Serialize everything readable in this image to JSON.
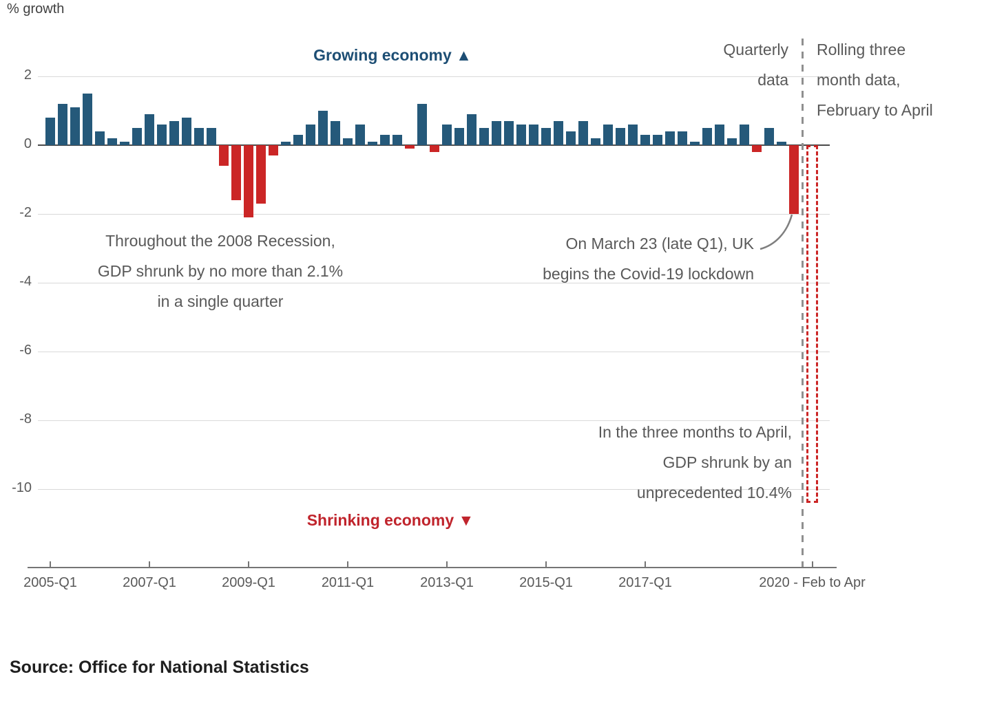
{
  "chart_data": {
    "type": "bar",
    "ylabel": "% growth",
    "ylim": [
      -10.4,
      2
    ],
    "grid": true,
    "legend_position": "none",
    "start_quarter": "2005-Q1",
    "frequency": "quarterly",
    "values": [
      0.8,
      1.2,
      1.1,
      1.5,
      0.4,
      0.2,
      0.1,
      0.5,
      0.9,
      0.6,
      0.7,
      0.8,
      0.5,
      0.5,
      -0.6,
      -1.6,
      -2.1,
      -1.7,
      -0.3,
      0.1,
      0.3,
      0.6,
      1.0,
      0.7,
      0.2,
      0.6,
      0.1,
      0.3,
      0.3,
      -0.1,
      1.2,
      -0.2,
      0.6,
      0.5,
      0.9,
      0.5,
      0.7,
      0.7,
      0.6,
      0.6,
      0.5,
      0.7,
      0.4,
      0.7,
      0.2,
      0.6,
      0.5,
      0.6,
      0.3,
      0.3,
      0.4,
      0.4,
      0.1,
      0.5,
      0.6,
      0.2,
      0.6,
      -0.2,
      0.5,
      0.1,
      -2.0
    ],
    "rolling": {
      "label": "2020 - Feb to Apr",
      "period": "February to April",
      "value": -10.4,
      "style": "dashed-outline"
    },
    "yticks": [
      2,
      0,
      -2,
      -4,
      -6,
      -8,
      -10
    ],
    "xticks": [
      {
        "label": "2005-Q1",
        "index": 0
      },
      {
        "label": "2007-Q1",
        "index": 8
      },
      {
        "label": "2009-Q1",
        "index": 16
      },
      {
        "label": "2011-Q1",
        "index": 24
      },
      {
        "label": "2013-Q1",
        "index": 32
      },
      {
        "label": "2015-Q1",
        "index": 40
      },
      {
        "label": "2017-Q1",
        "index": 48
      },
      {
        "label": "2020 - Feb to Apr",
        "index": 61,
        "rolling": true
      }
    ],
    "annotations": {
      "growing": {
        "text": "Growing economy",
        "icon": "▲"
      },
      "shrinking": {
        "text": "Shrinking economy",
        "icon": "▼"
      },
      "quarterly_data": "Quarterly\ndata",
      "rolling_data": "Rolling three\nmonth data,\nFebruary to April",
      "recession_2008": "Throughout the 2008 Recession,\nGDP shrunk by no more than 2.1%\nin a single quarter",
      "lockdown": "On March 23 (late Q1), UK\nbegins the Covid-19 lockdown",
      "april_drop": "In the three months to April,\nGDP shrunk by an\nunprecedented 10.4%"
    }
  },
  "colors": {
    "positive_bar": "#25597a",
    "negative_bar": "#cb2626",
    "growing_label": "#1d4e74",
    "shrinking_label": "#c0242c",
    "annotation_text": "#595959",
    "axis_text": "#595959",
    "gridline": "#d9d9d9",
    "zero_line": "#4a4a4a",
    "axis_line": "#757575",
    "separator": "#8f8f8f"
  },
  "source": "Source: Office for National Statistics"
}
